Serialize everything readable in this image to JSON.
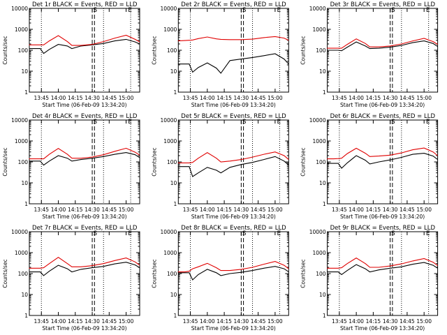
{
  "figure": {
    "xlabel_prefix": "Start Time (",
    "start_time": "06-Feb-09 13:34:20",
    "xlabel_suffix": ")",
    "ylabel": "Counts/sec",
    "xticks": [
      "13:45",
      "14:00",
      "14:15",
      "14:30",
      "14:45",
      "15:00"
    ],
    "yticks": [
      "1",
      "10",
      "100",
      "1000",
      "10000"
    ],
    "marker_labels": {
      "S": "S",
      "E": "E"
    },
    "colors": {
      "events": "#000000",
      "lld": "#e00000"
    }
  },
  "chart_data": [
    {
      "type": "line",
      "title": "Det 1r  BLACK = Events, RED = LLD",
      "xlabel": "Start Time (06-Feb-09 13:34:20)",
      "ylabel": "Counts/sec",
      "y_scale": "log",
      "ylim": [
        1,
        10000
      ],
      "xlim": [
        "13:34:20",
        "15:12"
      ],
      "vlines_dotted": [
        "13:45",
        "14:40",
        "15:04"
      ],
      "vlines_dashed": [
        "14:30",
        "14:32"
      ],
      "series": [
        {
          "name": "Events",
          "x": [
            "13:34",
            "13:40",
            "13:44",
            "13:47",
            "13:52",
            "14:00",
            "14:08",
            "14:12",
            "14:20",
            "14:30",
            "14:40",
            "14:50",
            "15:00",
            "15:08",
            "15:12"
          ],
          "y": [
            120,
            120,
            120,
            70,
            110,
            190,
            160,
            120,
            160,
            180,
            210,
            280,
            330,
            250,
            200
          ]
        },
        {
          "name": "LLD",
          "x": [
            "13:34",
            "13:40",
            "13:44",
            "13:47",
            "13:52",
            "14:00",
            "14:08",
            "14:12",
            "14:20",
            "14:30",
            "14:40",
            "14:50",
            "15:00",
            "15:08",
            "15:12"
          ],
          "y": [
            180,
            180,
            180,
            180,
            280,
            500,
            260,
            170,
            170,
            190,
            260,
            380,
            520,
            330,
            250
          ]
        }
      ]
    },
    {
      "type": "line",
      "title": "Det 2r  BLACK = Events, RED = LLD",
      "xlabel": "Start Time (06-Feb-09 13:34:20)",
      "ylabel": "Counts/sec",
      "y_scale": "log",
      "ylim": [
        1,
        10000
      ],
      "xlim": [
        "13:34:20",
        "15:12"
      ],
      "vlines_dotted": [
        "13:45",
        "14:40",
        "15:04"
      ],
      "vlines_dashed": [
        "14:30",
        "14:32"
      ],
      "series": [
        {
          "name": "Events",
          "x": [
            "13:34",
            "13:40",
            "13:44",
            "13:47",
            "13:52",
            "14:00",
            "14:08",
            "14:12",
            "14:20",
            "14:30",
            "14:40",
            "14:50",
            "15:00",
            "15:08",
            "15:12"
          ],
          "y": [
            22,
            22,
            22,
            9,
            15,
            25,
            14,
            8,
            32,
            38,
            45,
            55,
            68,
            38,
            22
          ]
        },
        {
          "name": "LLD",
          "x": [
            "13:34",
            "13:40",
            "13:44",
            "13:47",
            "13:52",
            "14:00",
            "14:08",
            "14:12",
            "14:20",
            "14:30",
            "14:40",
            "14:50",
            "15:00",
            "15:08",
            "15:12"
          ],
          "y": [
            280,
            290,
            300,
            310,
            360,
            430,
            350,
            330,
            320,
            320,
            340,
            400,
            450,
            380,
            300
          ]
        }
      ]
    },
    {
      "type": "line",
      "title": "Det 3r  BLACK = Events, RED = LLD",
      "xlabel": "Start Time (06-Feb-09 13:34:20)",
      "ylabel": "Counts/sec",
      "y_scale": "log",
      "ylim": [
        1,
        10000
      ],
      "xlim": [
        "13:34:20",
        "15:12"
      ],
      "vlines_dotted": [
        "13:45",
        "14:40",
        "15:04"
      ],
      "vlines_dashed": [
        "14:30",
        "14:32"
      ],
      "series": [
        {
          "name": "Events",
          "x": [
            "13:34",
            "13:40",
            "13:44",
            "13:47",
            "13:52",
            "14:00",
            "14:08",
            "14:12",
            "14:20",
            "14:30",
            "14:40",
            "14:50",
            "15:00",
            "15:08",
            "15:12"
          ],
          "y": [
            100,
            100,
            100,
            95,
            140,
            250,
            160,
            120,
            125,
            140,
            170,
            230,
            280,
            210,
            150
          ]
        },
        {
          "name": "LLD",
          "x": [
            "13:34",
            "13:40",
            "13:44",
            "13:47",
            "13:52",
            "14:00",
            "14:08",
            "14:12",
            "14:20",
            "14:30",
            "14:40",
            "14:50",
            "15:00",
            "15:08",
            "15:12"
          ],
          "y": [
            125,
            125,
            125,
            125,
            190,
            350,
            210,
            145,
            145,
            160,
            200,
            280,
            370,
            260,
            190
          ]
        }
      ]
    },
    {
      "type": "line",
      "title": "Det 4r  BLACK = Events, RED = LLD",
      "xlabel": "Start Time (06-Feb-09 13:34:20)",
      "ylabel": "Counts/sec",
      "y_scale": "log",
      "ylim": [
        1,
        10000
      ],
      "xlim": [
        "13:34:20",
        "15:12"
      ],
      "vlines_dotted": [
        "13:45",
        "14:40",
        "15:04"
      ],
      "vlines_dashed": [
        "14:30",
        "14:32"
      ],
      "series": [
        {
          "name": "Events",
          "x": [
            "13:34",
            "13:40",
            "13:44",
            "13:47",
            "13:52",
            "14:00",
            "14:08",
            "14:12",
            "14:20",
            "14:30",
            "14:40",
            "14:50",
            "15:00",
            "15:08",
            "15:12"
          ],
          "y": [
            110,
            110,
            110,
            70,
            110,
            200,
            150,
            110,
            130,
            150,
            180,
            230,
            280,
            220,
            160
          ]
        },
        {
          "name": "LLD",
          "x": [
            "13:34",
            "13:40",
            "13:44",
            "13:47",
            "13:52",
            "14:00",
            "14:08",
            "14:12",
            "14:20",
            "14:30",
            "14:40",
            "14:50",
            "15:00",
            "15:08",
            "15:12"
          ],
          "y": [
            140,
            140,
            140,
            140,
            230,
            440,
            230,
            150,
            150,
            170,
            220,
            320,
            450,
            290,
            210
          ]
        }
      ]
    },
    {
      "type": "line",
      "title": "Det 5r  BLACK = Events, RED = LLD",
      "xlabel": "Start Time (06-Feb-09 13:34:20)",
      "ylabel": "Counts/sec",
      "y_scale": "log",
      "ylim": [
        1,
        10000
      ],
      "xlim": [
        "13:34:20",
        "15:12"
      ],
      "vlines_dotted": [
        "13:45",
        "14:40",
        "15:04"
      ],
      "vlines_dashed": [
        "14:30",
        "14:32"
      ],
      "series": [
        {
          "name": "Events",
          "x": [
            "13:34",
            "13:40",
            "13:44",
            "13:47",
            "13:52",
            "14:00",
            "14:08",
            "14:12",
            "14:20",
            "14:30",
            "14:40",
            "14:50",
            "15:00",
            "15:08",
            "15:12"
          ],
          "y": [
            60,
            60,
            60,
            20,
            30,
            55,
            40,
            30,
            55,
            75,
            95,
            130,
            180,
            110,
            70
          ]
        },
        {
          "name": "LLD",
          "x": [
            "13:34",
            "13:40",
            "13:44",
            "13:47",
            "13:52",
            "14:00",
            "14:08",
            "14:12",
            "14:20",
            "14:30",
            "14:40",
            "14:50",
            "15:00",
            "15:08",
            "15:12"
          ],
          "y": [
            90,
            90,
            90,
            95,
            150,
            280,
            150,
            100,
            110,
            130,
            170,
            230,
            300,
            200,
            130
          ]
        }
      ]
    },
    {
      "type": "line",
      "title": "Det 6r  BLACK = Events, RED = LLD",
      "xlabel": "Start Time (06-Feb-09 13:34:20)",
      "ylabel": "Counts/sec",
      "y_scale": "log",
      "ylim": [
        1,
        10000
      ],
      "xlim": [
        "13:34:20",
        "15:12"
      ],
      "vlines_dotted": [
        "13:45",
        "14:40",
        "15:04"
      ],
      "vlines_dashed": [
        "14:30",
        "14:32"
      ],
      "series": [
        {
          "name": "Events",
          "x": [
            "13:34",
            "13:40",
            "13:44",
            "13:47",
            "13:52",
            "14:00",
            "14:08",
            "14:12",
            "14:20",
            "14:30",
            "14:40",
            "14:50",
            "15:00",
            "15:08",
            "15:12"
          ],
          "y": [
            85,
            85,
            85,
            50,
            90,
            200,
            120,
            80,
            100,
            125,
            165,
            230,
            260,
            190,
            130
          ]
        },
        {
          "name": "LLD",
          "x": [
            "13:34",
            "13:40",
            "13:44",
            "13:47",
            "13:52",
            "14:00",
            "14:08",
            "14:12",
            "14:20",
            "14:30",
            "14:40",
            "14:50",
            "15:00",
            "15:08",
            "15:12"
          ],
          "y": [
            140,
            140,
            145,
            150,
            250,
            450,
            260,
            180,
            190,
            210,
            270,
            380,
            460,
            300,
            200
          ]
        }
      ]
    },
    {
      "type": "line",
      "title": "Det 7r  BLACK = Events, RED = LLD",
      "xlabel": "Start Time (06-Feb-09 13:34:20)",
      "ylabel": "Counts/sec",
      "y_scale": "log",
      "ylim": [
        1,
        10000
      ],
      "xlim": [
        "13:34:20",
        "15:12"
      ],
      "vlines_dotted": [
        "13:45",
        "14:40",
        "15:04"
      ],
      "vlines_dashed": [
        "14:30",
        "14:32"
      ],
      "series": [
        {
          "name": "Events",
          "x": [
            "13:34",
            "13:40",
            "13:44",
            "13:47",
            "13:52",
            "14:00",
            "14:08",
            "14:12",
            "14:20",
            "14:30",
            "14:40",
            "14:50",
            "15:00",
            "15:08",
            "15:12"
          ],
          "y": [
            120,
            120,
            120,
            80,
            130,
            250,
            170,
            120,
            160,
            190,
            220,
            290,
            350,
            260,
            190
          ]
        },
        {
          "name": "LLD",
          "x": [
            "13:34",
            "13:40",
            "13:44",
            "13:47",
            "13:52",
            "14:00",
            "14:08",
            "14:12",
            "14:20",
            "14:30",
            "14:40",
            "14:50",
            "15:00",
            "15:08",
            "15:12"
          ],
          "y": [
            180,
            180,
            180,
            190,
            300,
            600,
            300,
            210,
            210,
            240,
            300,
            420,
            560,
            360,
            250
          ]
        }
      ]
    },
    {
      "type": "line",
      "title": "Det 8r  BLACK = Events, RED = LLD",
      "xlabel": "Start Time (06-Feb-09 13:34:20)",
      "ylabel": "Counts/sec",
      "y_scale": "log",
      "ylim": [
        1,
        10000
      ],
      "xlim": [
        "13:34:20",
        "15:12"
      ],
      "vlines_dotted": [
        "13:45",
        "14:40",
        "15:04"
      ],
      "vlines_dashed": [
        "14:30",
        "14:32"
      ],
      "series": [
        {
          "name": "Events",
          "x": [
            "13:34",
            "13:40",
            "13:44",
            "13:47",
            "13:52",
            "14:00",
            "14:08",
            "14:12",
            "14:20",
            "14:30",
            "14:40",
            "14:50",
            "15:00",
            "15:08",
            "15:12"
          ],
          "y": [
            110,
            110,
            110,
            50,
            90,
            160,
            110,
            80,
            100,
            115,
            140,
            180,
            220,
            170,
            120
          ]
        },
        {
          "name": "LLD",
          "x": [
            "13:34",
            "13:40",
            "13:44",
            "13:47",
            "13:52",
            "14:00",
            "14:08",
            "14:12",
            "14:20",
            "14:30",
            "14:40",
            "14:50",
            "15:00",
            "15:08",
            "15:12"
          ],
          "y": [
            120,
            120,
            130,
            170,
            210,
            310,
            190,
            140,
            140,
            160,
            200,
            280,
            380,
            250,
            170
          ]
        }
      ]
    },
    {
      "type": "line",
      "title": "Det 9r  BLACK = Events, RED = LLD",
      "xlabel": "Start Time (06-Feb-09 13:34:20)",
      "ylabel": "Counts/sec",
      "y_scale": "log",
      "ylim": [
        1,
        10000
      ],
      "xlim": [
        "13:34:20",
        "15:12"
      ],
      "vlines_dotted": [
        "13:45",
        "14:40",
        "15:04"
      ],
      "vlines_dashed": [
        "14:30",
        "14:32"
      ],
      "series": [
        {
          "name": "Events",
          "x": [
            "13:34",
            "13:40",
            "13:44",
            "13:47",
            "13:52",
            "14:00",
            "14:08",
            "14:12",
            "14:20",
            "14:30",
            "14:40",
            "14:50",
            "15:00",
            "15:08",
            "15:12"
          ],
          "y": [
            120,
            120,
            120,
            90,
            140,
            270,
            170,
            120,
            150,
            180,
            210,
            280,
            340,
            250,
            180
          ]
        },
        {
          "name": "LLD",
          "x": [
            "13:34",
            "13:40",
            "13:44",
            "13:47",
            "13:52",
            "14:00",
            "14:08",
            "14:12",
            "14:20",
            "14:30",
            "14:40",
            "14:50",
            "15:00",
            "15:08",
            "15:12"
          ],
          "y": [
            180,
            180,
            180,
            190,
            300,
            560,
            300,
            200,
            200,
            230,
            290,
            400,
            520,
            350,
            240
          ]
        }
      ]
    }
  ]
}
